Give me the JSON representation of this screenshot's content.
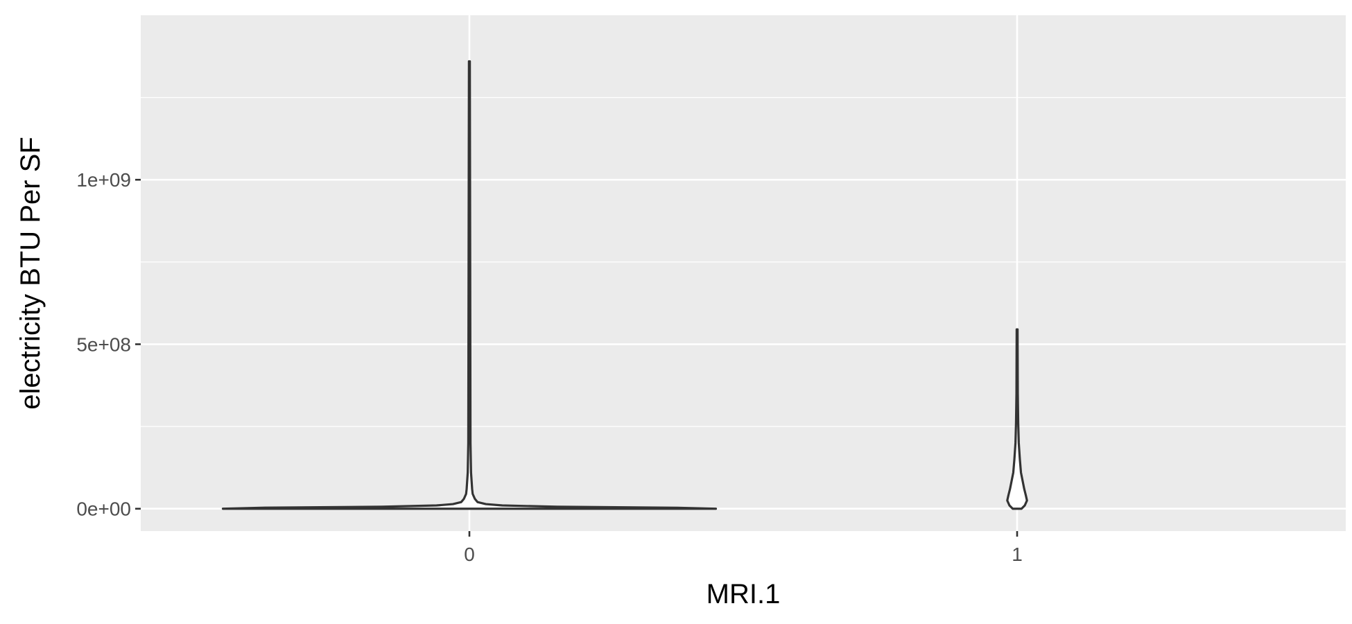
{
  "chart_data": {
    "type": "violin",
    "title": "",
    "xlabel": "MRI.1",
    "ylabel": "electricity BTU Per SF",
    "categories": [
      "0",
      "1"
    ],
    "ylim": [
      -68000000,
      1500000000
    ],
    "y_ticks": [
      {
        "value": 0,
        "label": "0e+00"
      },
      {
        "value": 500000000,
        "label": "5e+08"
      },
      {
        "value": 1000000000,
        "label": "1e+09"
      }
    ],
    "grid": true,
    "panel_background": "#ebebeb",
    "violin_color": "#333333",
    "series": [
      {
        "category": "0",
        "min": 0,
        "max": 1360000000,
        "profile": [
          {
            "y": 0,
            "half_width": 0.45
          },
          {
            "y": 3000000,
            "half_width": 0.38
          },
          {
            "y": 6000000,
            "half_width": 0.16
          },
          {
            "y": 10000000,
            "half_width": 0.06
          },
          {
            "y": 14000000,
            "half_width": 0.03
          },
          {
            "y": 20000000,
            "half_width": 0.015
          },
          {
            "y": 30000000,
            "half_width": 0.01
          },
          {
            "y": 45000000,
            "half_width": 0.006
          },
          {
            "y": 60000000,
            "half_width": 0.005
          },
          {
            "y": 85000000,
            "half_width": 0.004
          },
          {
            "y": 110000000,
            "half_width": 0.003
          },
          {
            "y": 200000000,
            "half_width": 0.002
          },
          {
            "y": 1360000000,
            "half_width": 0.0008
          }
        ]
      },
      {
        "category": "1",
        "min": 0,
        "max": 545000000,
        "profile": [
          {
            "y": 0,
            "half_width": 0.008
          },
          {
            "y": 10000000,
            "half_width": 0.014
          },
          {
            "y": 25000000,
            "half_width": 0.018
          },
          {
            "y": 40000000,
            "half_width": 0.016
          },
          {
            "y": 60000000,
            "half_width": 0.013
          },
          {
            "y": 85000000,
            "half_width": 0.01
          },
          {
            "y": 110000000,
            "half_width": 0.007
          },
          {
            "y": 150000000,
            "half_width": 0.005
          },
          {
            "y": 200000000,
            "half_width": 0.003
          },
          {
            "y": 260000000,
            "half_width": 0.002
          },
          {
            "y": 350000000,
            "half_width": 0.0012
          },
          {
            "y": 545000000,
            "half_width": 0.0008
          }
        ]
      }
    ]
  }
}
